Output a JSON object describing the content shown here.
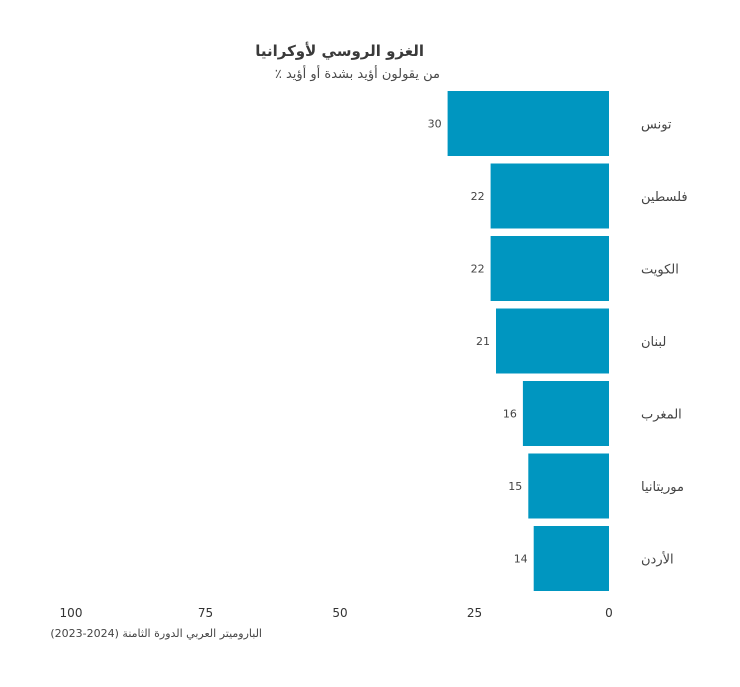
{
  "chart_data": {
    "type": "bar",
    "orientation": "horizontal",
    "title": "الغزو الروسي لأوكرانيا",
    "subtitle": "٪ من يقولون أؤيد بشدة أو أؤيد",
    "categories": [
      "تونس",
      "فلسطين",
      "الكويت",
      "لبنان",
      "المغرب",
      "موريتانيا",
      "الأردن"
    ],
    "values": [
      30,
      22,
      22,
      21,
      16,
      15,
      14
    ],
    "xlim": [
      0,
      100
    ],
    "x_reversed": true,
    "ticks": [
      {
        "value": 100,
        "label": "100"
      },
      {
        "value": 75,
        "label": "75"
      },
      {
        "value": 50,
        "label": "50"
      },
      {
        "value": 25,
        "label": "25"
      },
      {
        "value": 0,
        "label": "0"
      }
    ],
    "grid": false,
    "bar_color": "#0096c0",
    "source": "الباروميتر العربي الدورة الثامنة (2024-2023)"
  }
}
